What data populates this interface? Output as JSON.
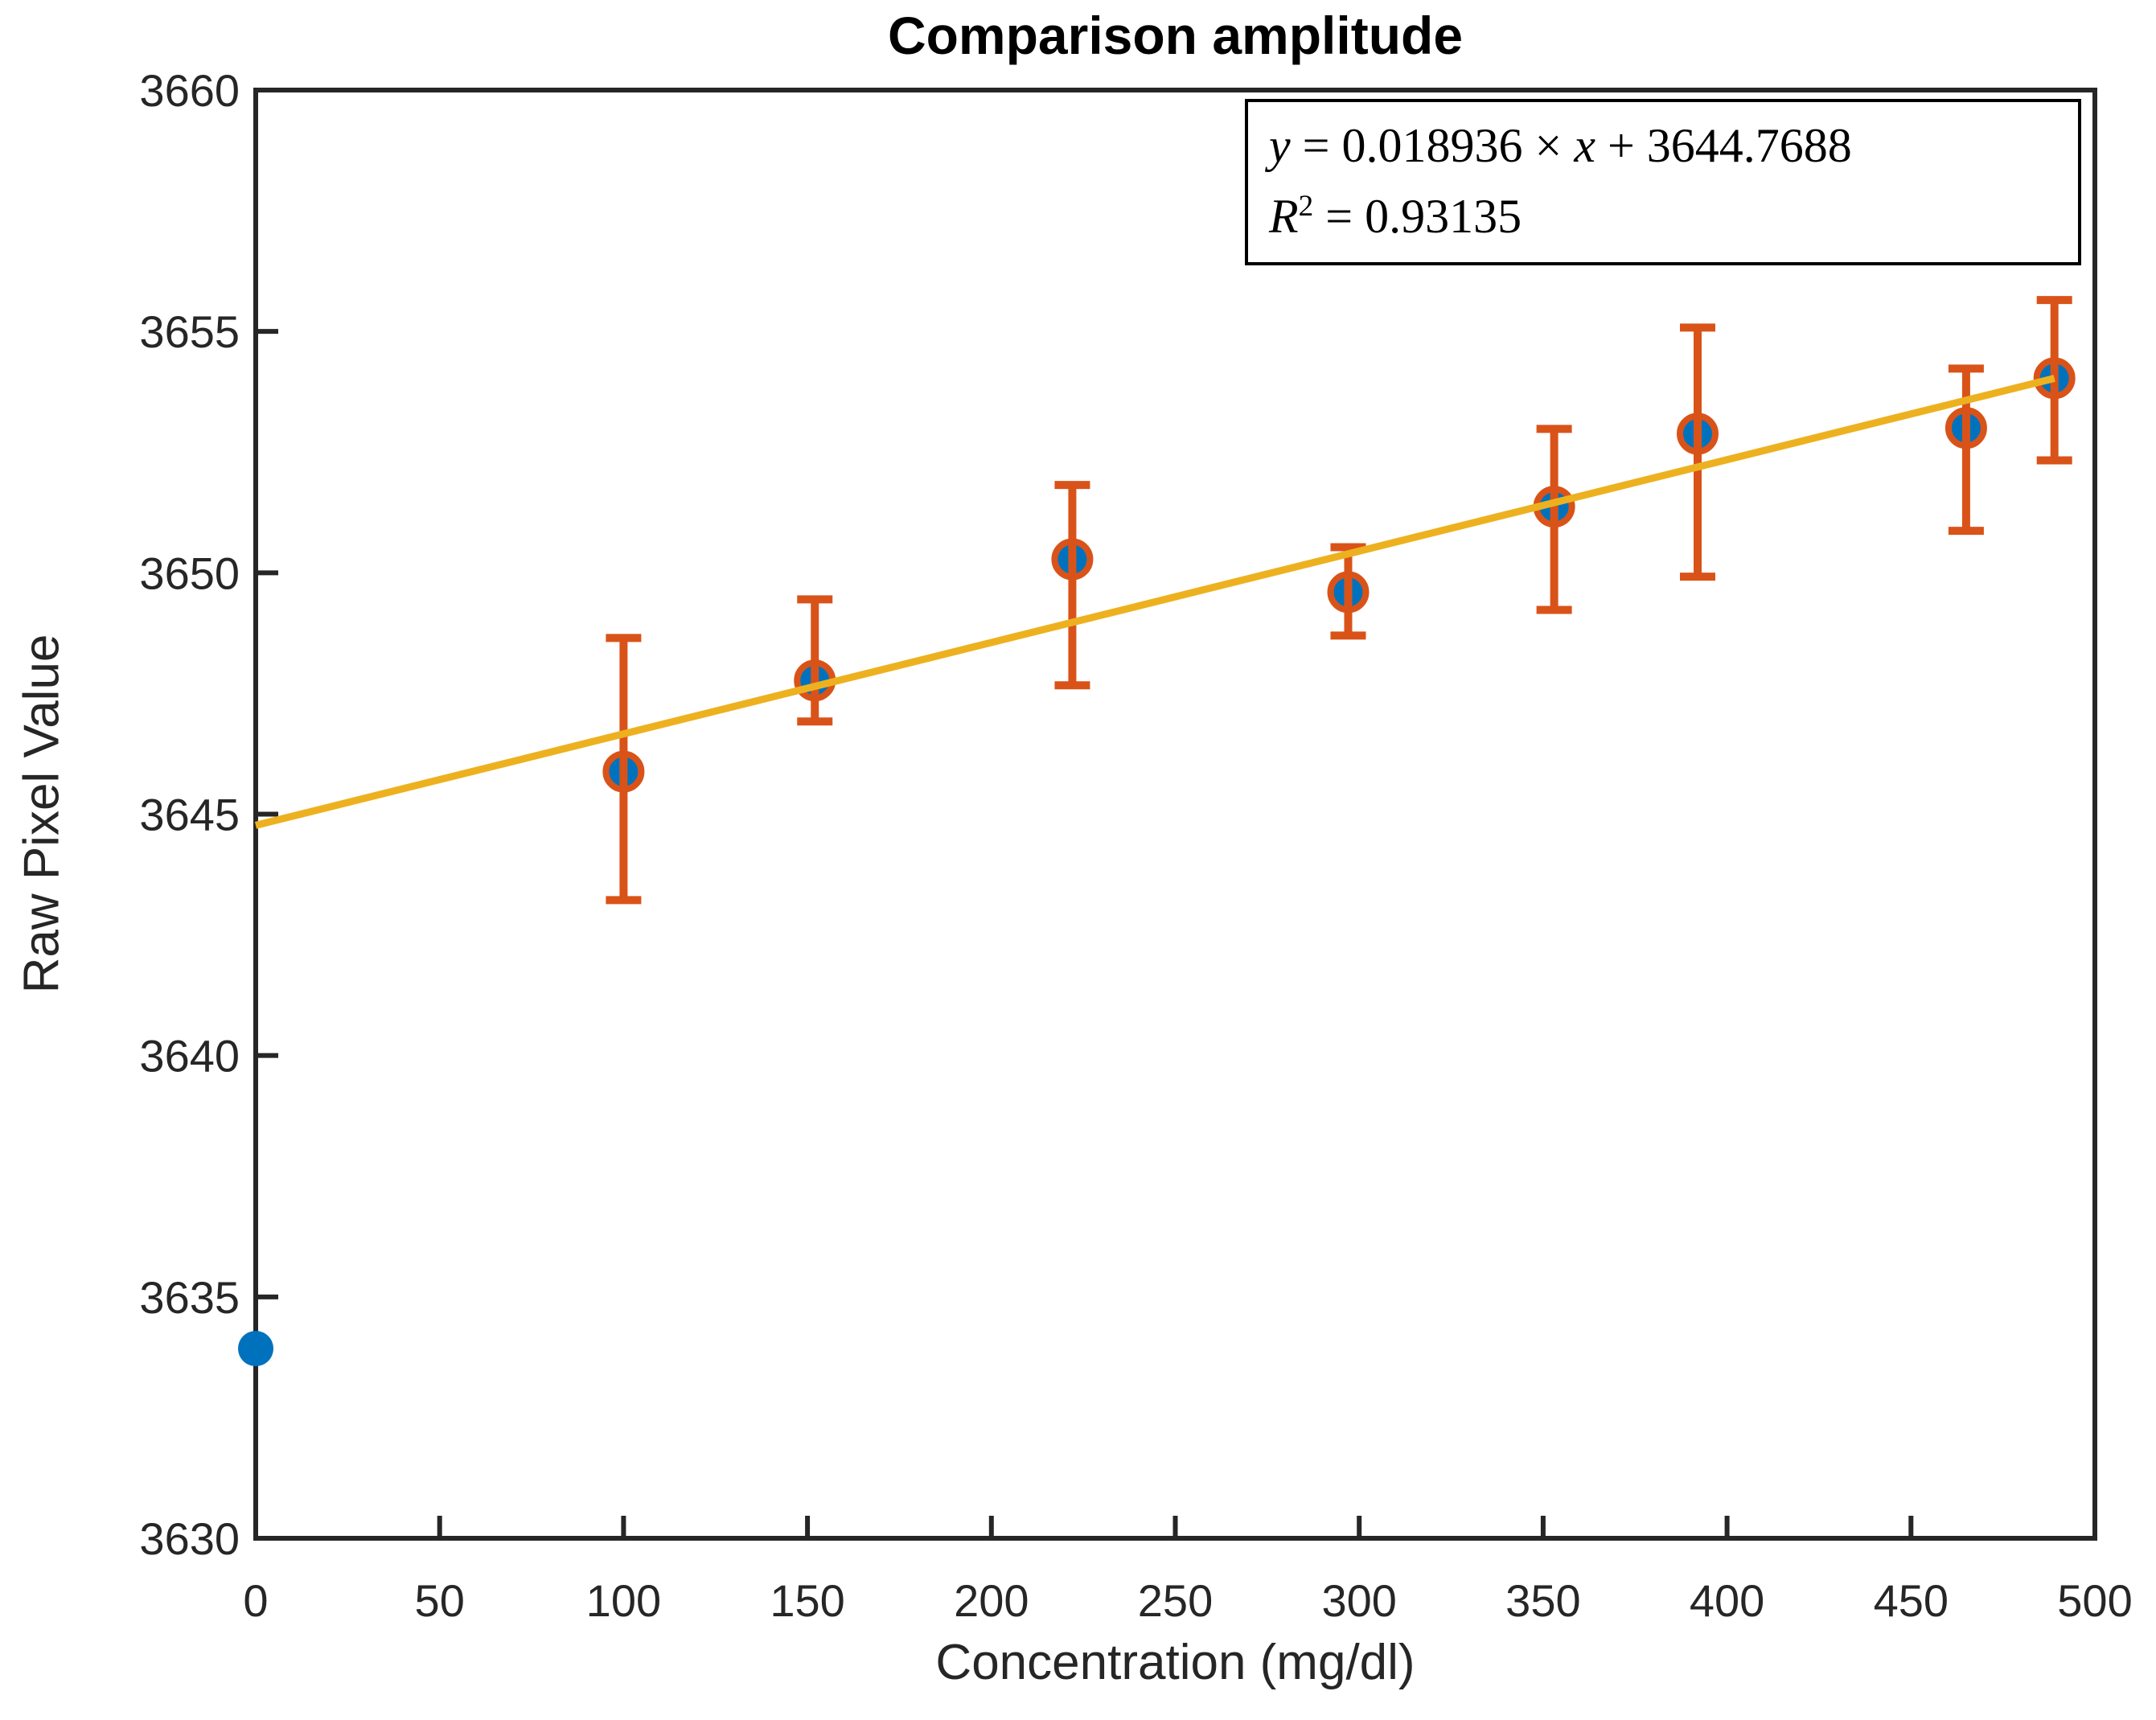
{
  "chart_data": {
    "type": "scatter",
    "title": "Comparison amplitude",
    "xlabel": "Concentration (mg/dl)",
    "ylabel": "Raw Pixel Value",
    "xlim": [
      0,
      500
    ],
    "ylim": [
      3630,
      3660
    ],
    "xticks": [
      0,
      50,
      100,
      150,
      200,
      250,
      300,
      350,
      400,
      450,
      500
    ],
    "yticks": [
      3630,
      3635,
      3640,
      3645,
      3650,
      3655,
      3660
    ],
    "grid": false,
    "legend_position": "none",
    "points": [
      {
        "x": 0,
        "y": 3633.93,
        "y_low": null,
        "y_high": null
      },
      {
        "x": 100,
        "y": 3645.88,
        "y_low": 3643.22,
        "y_high": 3648.65
      },
      {
        "x": 152,
        "y": 3647.77,
        "y_low": 3646.92,
        "y_high": 3649.45
      },
      {
        "x": 222,
        "y": 3650.28,
        "y_low": 3647.67,
        "y_high": 3651.82
      },
      {
        "x": 297,
        "y": 3649.6,
        "y_low": 3648.7,
        "y_high": 3650.53
      },
      {
        "x": 353,
        "y": 3651.37,
        "y_low": 3649.23,
        "y_high": 3652.98
      },
      {
        "x": 392,
        "y": 3652.88,
        "y_low": 3649.92,
        "y_high": 3655.08
      },
      {
        "x": 465,
        "y": 3653.0,
        "y_low": 3650.87,
        "y_high": 3654.23
      },
      {
        "x": 489,
        "y": 3654.03,
        "y_low": 3652.33,
        "y_high": 3655.65
      }
    ],
    "fit_line": {
      "slope": 0.018936,
      "intercept": 3644.7688,
      "x_start": 0,
      "x_end": 489
    },
    "annotation": {
      "eq_y": "y",
      "eq_mid": " = 0.018936 × ",
      "eq_x": "x",
      "eq_rest": " + 3644.7688",
      "r2_base": "R",
      "r2_sup": "2",
      "r2_rest": " = 0.93135"
    },
    "colors": {
      "marker_fill": "#0072BD",
      "errorbar": "#D95319",
      "fit_line": "#EDB120",
      "axis": "#262626"
    }
  }
}
